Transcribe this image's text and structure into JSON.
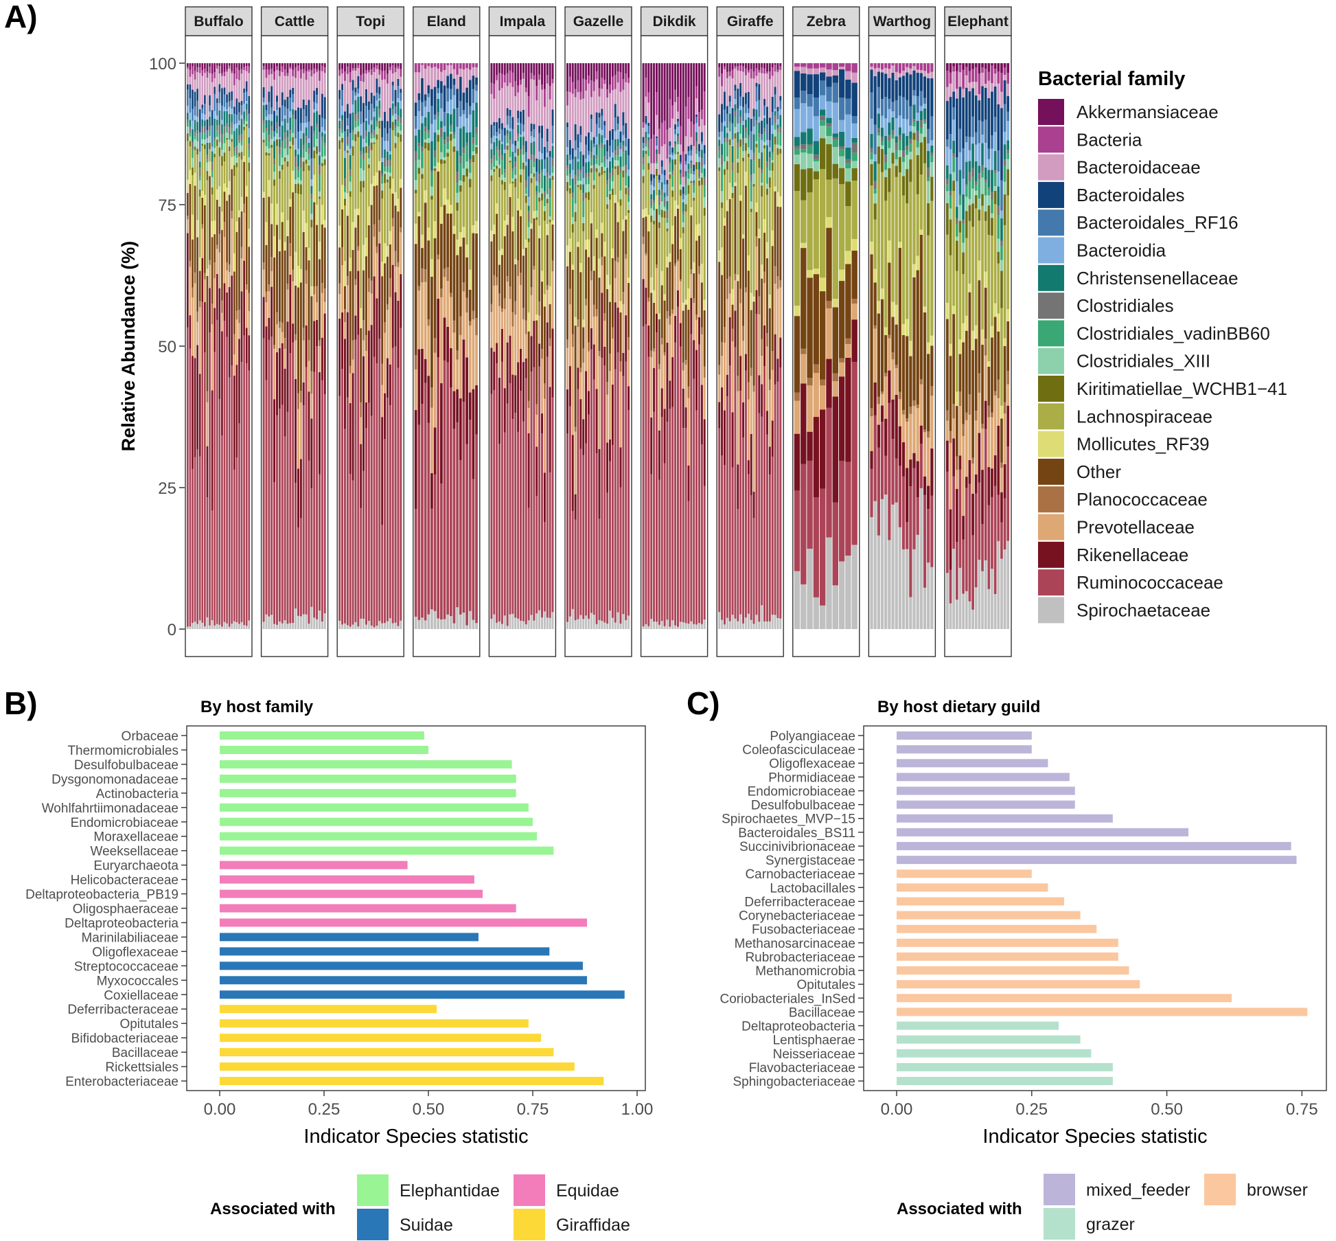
{
  "panel_labels": {
    "a": "A)",
    "b": "B)",
    "c": "C)"
  },
  "colors": {
    "Akkermansiaceae": "#75105a",
    "Bacteria": "#aa4090",
    "Bacteroidaceae": "#d19cc0",
    "Bacteroidales": "#12427a",
    "Bacteroidales_RF16": "#4479ad",
    "Bacteroidia": "#7eafe0",
    "Christensenellaceae": "#137a70",
    "Clostridiales": "#747474",
    "Clostridiales_vadinBB60": "#3aa874",
    "Clostridiales_XIII": "#8dd0ac",
    "Kiritimatiellae_WCHB1-41": "#6f6f12",
    "Lachnospiraceae": "#abad46",
    "Mollicutes_RF39": "#dedc74",
    "Other": "#744412",
    "Planococcaceae": "#aa7244",
    "Prevotellaceae": "#dea874",
    "Rikenellaceae": "#771221",
    "Ruminococcaceae": "#ab4457",
    "Spirochaetaceae": "#c0c0c0",
    "Elephantidae": "#99f494",
    "Suidae": "#2a77b7",
    "Equidae": "#f27dba",
    "Giraffidae": "#fcd937",
    "mixed_feeder": "#bcb5d9",
    "grazer": "#b4e1cc",
    "browser": "#fbc79e"
  },
  "chart_data": [
    {
      "type": "stacked-bar",
      "title": "",
      "ylabel": "Relative Abundance (%)",
      "xlabel": "",
      "ylim": [
        0,
        100
      ],
      "yticks": [
        0,
        25,
        50,
        75,
        100
      ],
      "legend_title": "Bacterial family",
      "families": [
        "Akkermansiaceae",
        "Bacteria",
        "Bacteroidaceae",
        "Bacteroidales",
        "Bacteroidales_RF16",
        "Bacteroidia",
        "Christensenellaceae",
        "Clostridiales",
        "Clostridiales_vadinBB60",
        "Clostridiales_XIII",
        "Kiritimatiellae_WCHB1−41",
        "Lachnospiraceae",
        "Mollicutes_RF39",
        "Other",
        "Planococcaceae",
        "Prevotellaceae",
        "Rikenellaceae",
        "Ruminococcaceae",
        "Spirochaetaceae"
      ],
      "stack_order": [
        "Spirochaetaceae",
        "Ruminococcaceae",
        "Rikenellaceae",
        "Prevotellaceae",
        "Planococcaceae",
        "Other",
        "Mollicutes_RF39",
        "Lachnospiraceae",
        "Kiritimatiellae_WCHB1-41",
        "Clostridiales_XIII",
        "Clostridiales_vadinBB60",
        "Clostridiales",
        "Christensenellaceae",
        "Bacteroidia",
        "Bacteroidales_RF16",
        "Bacteroidales",
        "Bacteroidaceae",
        "Bacteria",
        "Akkermansiaceae"
      ],
      "facets": [
        {
          "name": "Buffalo",
          "n": 26,
          "mean": {
            "Spirochaetaceae": 1,
            "Ruminococcaceae": 42,
            "Rikenellaceae": 12,
            "Prevotellaceae": 7,
            "Planococcaceae": 2,
            "Other": 11,
            "Mollicutes_RF39": 2,
            "Lachnospiraceae": 7,
            "Kiritimatiellae_WCHB1-41": 1,
            "Clostridiales_XIII": 1,
            "Clostridiales_vadinBB60": 1,
            "Clostridiales": 1,
            "Christensenellaceae": 2,
            "Bacteroidia": 1,
            "Bacteroidales_RF16": 2,
            "Bacteroidales": 2,
            "Bacteroidaceae": 4,
            "Bacteria": 1,
            "Akkermansiaceae": 1
          }
        },
        {
          "name": "Cattle",
          "n": 24,
          "mean": {
            "Spirochaetaceae": 2,
            "Ruminococcaceae": 38,
            "Rikenellaceae": 10,
            "Prevotellaceae": 6,
            "Planococcaceae": 2,
            "Other": 12,
            "Mollicutes_RF39": 3,
            "Lachnospiraceae": 8,
            "Kiritimatiellae_WCHB1-41": 1,
            "Clostridiales_XIII": 1,
            "Clostridiales_vadinBB60": 2,
            "Clostridiales": 1,
            "Christensenellaceae": 2,
            "Bacteroidia": 1,
            "Bacteroidales_RF16": 2,
            "Bacteroidales": 3,
            "Bacteroidaceae": 4,
            "Bacteria": 1,
            "Akkermansiaceae": 1
          }
        },
        {
          "name": "Topi",
          "n": 24,
          "mean": {
            "Spirochaetaceae": 1,
            "Ruminococcaceae": 40,
            "Rikenellaceae": 12,
            "Prevotellaceae": 6,
            "Planococcaceae": 2,
            "Other": 10,
            "Mollicutes_RF39": 3,
            "Lachnospiraceae": 10,
            "Kiritimatiellae_WCHB1-41": 1,
            "Clostridiales_XIII": 1,
            "Clostridiales_vadinBB60": 1,
            "Clostridiales": 1,
            "Christensenellaceae": 2,
            "Bacteroidia": 1,
            "Bacteroidales_RF16": 2,
            "Bacteroidales": 2,
            "Bacteroidaceae": 4,
            "Bacteria": 1,
            "Akkermansiaceae": 1
          }
        },
        {
          "name": "Eland",
          "n": 20,
          "mean": {
            "Spirochaetaceae": 2,
            "Ruminococcaceae": 36,
            "Rikenellaceae": 10,
            "Prevotellaceae": 9,
            "Planococcaceae": 2,
            "Other": 11,
            "Mollicutes_RF39": 2,
            "Lachnospiraceae": 9,
            "Kiritimatiellae_WCHB1-41": 1,
            "Clostridiales_XIII": 1,
            "Clostridiales_vadinBB60": 2,
            "Clostridiales": 1,
            "Christensenellaceae": 3,
            "Bacteroidia": 2,
            "Bacteroidales_RF16": 2,
            "Bacteroidales": 3,
            "Bacteroidaceae": 3,
            "Bacteria": 1,
            "Akkermansiaceae": 0
          }
        },
        {
          "name": "Impala",
          "n": 24,
          "mean": {
            "Spirochaetaceae": 2,
            "Ruminococcaceae": 34,
            "Rikenellaceae": 9,
            "Prevotellaceae": 9,
            "Planococcaceae": 2,
            "Other": 11,
            "Mollicutes_RF39": 2,
            "Lachnospiraceae": 10,
            "Kiritimatiellae_WCHB1-41": 1,
            "Clostridiales_XIII": 1,
            "Clostridiales_vadinBB60": 2,
            "Clostridiales": 1,
            "Christensenellaceae": 2,
            "Bacteroidia": 1,
            "Bacteroidales_RF16": 2,
            "Bacteroidales": 2,
            "Bacteroidaceae": 6,
            "Bacteria": 2,
            "Akkermansiaceae": 3
          }
        },
        {
          "name": "Gazelle",
          "n": 24,
          "mean": {
            "Spirochaetaceae": 2,
            "Ruminococcaceae": 34,
            "Rikenellaceae": 9,
            "Prevotellaceae": 9,
            "Planococcaceae": 2,
            "Other": 10,
            "Mollicutes_RF39": 2,
            "Lachnospiraceae": 11,
            "Kiritimatiellae_WCHB1-41": 1,
            "Clostridiales_XIII": 1,
            "Clostridiales_vadinBB60": 2,
            "Clostridiales": 1,
            "Christensenellaceae": 2,
            "Bacteroidia": 1,
            "Bacteroidales_RF16": 2,
            "Bacteroidales": 2,
            "Bacteroidaceae": 6,
            "Bacteria": 2,
            "Akkermansiaceae": 3
          }
        },
        {
          "name": "Dikdik",
          "n": 24,
          "mean": {
            "Spirochaetaceae": 1,
            "Ruminococcaceae": 42,
            "Rikenellaceae": 7,
            "Prevotellaceae": 7,
            "Planococcaceae": 1,
            "Other": 8,
            "Mollicutes_RF39": 2,
            "Lachnospiraceae": 9,
            "Kiritimatiellae_WCHB1-41": 1,
            "Clostridiales_XIII": 1,
            "Clostridiales_vadinBB60": 1,
            "Clostridiales": 1,
            "Christensenellaceae": 1,
            "Bacteroidia": 1,
            "Bacteroidales_RF16": 1,
            "Bacteroidales": 1,
            "Bacteroidaceae": 3,
            "Bacteria": 3,
            "Akkermansiaceae": 9
          }
        },
        {
          "name": "Giraffe",
          "n": 24,
          "mean": {
            "Spirochaetaceae": 2,
            "Ruminococcaceae": 38,
            "Rikenellaceae": 6,
            "Prevotellaceae": 9,
            "Planococcaceae": 2,
            "Other": 12,
            "Mollicutes_RF39": 2,
            "Lachnospiraceae": 11,
            "Kiritimatiellae_WCHB1-41": 1,
            "Clostridiales_XIII": 1,
            "Clostridiales_vadinBB60": 2,
            "Clostridiales": 1,
            "Christensenellaceae": 2,
            "Bacteroidia": 1,
            "Bacteroidales_RF16": 2,
            "Bacteroidales": 2,
            "Bacteroidaceae": 4,
            "Bacteria": 1,
            "Akkermansiaceae": 1
          }
        },
        {
          "name": "Zebra",
          "n": 10,
          "mean": {
            "Spirochaetaceae": 11,
            "Ruminococcaceae": 18,
            "Rikenellaceae": 13,
            "Prevotellaceae": 6,
            "Planococcaceae": 1,
            "Other": 14,
            "Mollicutes_RF39": 2,
            "Lachnospiraceae": 14,
            "Kiritimatiellae_WCHB1-41": 4,
            "Clostridiales_XIII": 2,
            "Clostridiales_vadinBB60": 1,
            "Clostridiales": 1,
            "Christensenellaceae": 2,
            "Bacteroidia": 4,
            "Bacteroidales_RF16": 3,
            "Bacteroidales": 4,
            "Bacteroidaceae": 1,
            "Bacteria": 1,
            "Akkermansiaceae": 0
          }
        },
        {
          "name": "Warthog",
          "n": 18,
          "mean": {
            "Spirochaetaceae": 16,
            "Ruminococcaceae": 13,
            "Rikenellaceae": 6,
            "Prevotellaceae": 6,
            "Planococcaceae": 1,
            "Other": 16,
            "Mollicutes_RF39": 2,
            "Lachnospiraceae": 19,
            "Kiritimatiellae_WCHB1-41": 4,
            "Clostridiales_XIII": 2,
            "Clostridiales_vadinBB60": 1,
            "Clostridiales": 1,
            "Christensenellaceae": 2,
            "Bacteroidia": 2,
            "Bacteroidales_RF16": 3,
            "Bacteroidales": 4,
            "Bacteroidaceae": 1,
            "Bacteria": 1,
            "Akkermansiaceae": 0
          }
        },
        {
          "name": "Elephant",
          "n": 20,
          "mean": {
            "Spirochaetaceae": 9,
            "Ruminococcaceae": 15,
            "Rikenellaceae": 7,
            "Prevotellaceae": 8,
            "Planococcaceae": 2,
            "Other": 12,
            "Mollicutes_RF39": 2,
            "Lachnospiraceae": 15,
            "Kiritimatiellae_WCHB1-41": 4,
            "Clostridiales_XIII": 2,
            "Clostridiales_vadinBB60": 2,
            "Clostridiales": 1,
            "Christensenellaceae": 3,
            "Bacteroidia": 3,
            "Bacteroidales_RF16": 3,
            "Bacteroidales": 7,
            "Bacteroidaceae": 2,
            "Bacteria": 2,
            "Akkermansiaceae": 1
          }
        }
      ]
    },
    {
      "type": "bar",
      "orientation": "horizontal",
      "title": "By host family",
      "xlabel": "Indicator Species statistic",
      "xlim": [
        0,
        1.0
      ],
      "xticks": [
        "0.00",
        "0.25",
        "0.50",
        "0.75",
        "1.00"
      ],
      "legend_title": "Associated with",
      "legend": [
        "Elephantidae",
        "Equidae",
        "Suidae",
        "Giraffidae"
      ],
      "bars": [
        {
          "label": "Orbaceae",
          "value": 0.49,
          "group": "Elephantidae"
        },
        {
          "label": "Thermomicrobiales",
          "value": 0.5,
          "group": "Elephantidae"
        },
        {
          "label": "Desulfobulbaceae",
          "value": 0.7,
          "group": "Elephantidae"
        },
        {
          "label": "Dysgonomonadaceae",
          "value": 0.71,
          "group": "Elephantidae"
        },
        {
          "label": "Actinobacteria",
          "value": 0.71,
          "group": "Elephantidae"
        },
        {
          "label": "Wohlfahrtiimonadaceae",
          "value": 0.74,
          "group": "Elephantidae"
        },
        {
          "label": "Endomicrobiaceae",
          "value": 0.75,
          "group": "Elephantidae"
        },
        {
          "label": "Moraxellaceae",
          "value": 0.76,
          "group": "Elephantidae"
        },
        {
          "label": "Weeksellaceae",
          "value": 0.8,
          "group": "Elephantidae"
        },
        {
          "label": "Euryarchaeota",
          "value": 0.45,
          "group": "Equidae"
        },
        {
          "label": "Helicobacteraceae",
          "value": 0.61,
          "group": "Equidae"
        },
        {
          "label": "Deltaproteobacteria_PB19",
          "value": 0.63,
          "group": "Equidae"
        },
        {
          "label": "Oligosphaeraceae",
          "value": 0.71,
          "group": "Equidae"
        },
        {
          "label": "Deltaproteobacteria",
          "value": 0.88,
          "group": "Equidae"
        },
        {
          "label": "Marinilabiliaceae",
          "value": 0.62,
          "group": "Suidae"
        },
        {
          "label": "Oligoflexaceae",
          "value": 0.79,
          "group": "Suidae"
        },
        {
          "label": "Streptococcaceae",
          "value": 0.87,
          "group": "Suidae"
        },
        {
          "label": "Myxococcales",
          "value": 0.88,
          "group": "Suidae"
        },
        {
          "label": "Coxiellaceae",
          "value": 0.97,
          "group": "Suidae"
        },
        {
          "label": "Deferribacteraceae",
          "value": 0.52,
          "group": "Giraffidae"
        },
        {
          "label": "Opitutales",
          "value": 0.74,
          "group": "Giraffidae"
        },
        {
          "label": "Bifidobacteriaceae",
          "value": 0.77,
          "group": "Giraffidae"
        },
        {
          "label": "Bacillaceae",
          "value": 0.8,
          "group": "Giraffidae"
        },
        {
          "label": "Rickettsiales",
          "value": 0.85,
          "group": "Giraffidae"
        },
        {
          "label": "Enterobacteriaceae",
          "value": 0.92,
          "group": "Giraffidae"
        }
      ]
    },
    {
      "type": "bar",
      "orientation": "horizontal",
      "title": "By host dietary guild",
      "xlabel": "Indicator Species statistic",
      "xlim": [
        0,
        0.78
      ],
      "xticks": [
        "0.00",
        "0.25",
        "0.50",
        "0.75"
      ],
      "legend_title": "Associated with",
      "legend": [
        "mixed_feeder",
        "browser",
        "grazer"
      ],
      "bars": [
        {
          "label": "Polyangiaceae",
          "value": 0.25,
          "group": "mixed_feeder"
        },
        {
          "label": "Coleofasciculaceae",
          "value": 0.25,
          "group": "mixed_feeder"
        },
        {
          "label": "Oligoflexaceae",
          "value": 0.28,
          "group": "mixed_feeder"
        },
        {
          "label": "Phormidiaceae",
          "value": 0.32,
          "group": "mixed_feeder"
        },
        {
          "label": "Endomicrobiaceae",
          "value": 0.33,
          "group": "mixed_feeder"
        },
        {
          "label": "Desulfobulbaceae",
          "value": 0.33,
          "group": "mixed_feeder"
        },
        {
          "label": "Spirochaetes_MVP−15",
          "value": 0.4,
          "group": "mixed_feeder"
        },
        {
          "label": "Bacteroidales_BS11",
          "value": 0.54,
          "group": "mixed_feeder"
        },
        {
          "label": "Succinivibrionaceae",
          "value": 0.73,
          "group": "mixed_feeder"
        },
        {
          "label": "Synergistaceae",
          "value": 0.74,
          "group": "mixed_feeder"
        },
        {
          "label": "Carnobacteriaceae",
          "value": 0.25,
          "group": "browser"
        },
        {
          "label": "Lactobacillales",
          "value": 0.28,
          "group": "browser"
        },
        {
          "label": "Deferribacteraceae",
          "value": 0.31,
          "group": "browser"
        },
        {
          "label": "Corynebacteriaceae",
          "value": 0.34,
          "group": "browser"
        },
        {
          "label": "Fusobacteriaceae",
          "value": 0.37,
          "group": "browser"
        },
        {
          "label": "Methanosarcinaceae",
          "value": 0.41,
          "group": "browser"
        },
        {
          "label": "Rubrobacteriaceae",
          "value": 0.41,
          "group": "browser"
        },
        {
          "label": "Methanomicrobia",
          "value": 0.43,
          "group": "browser"
        },
        {
          "label": "Opitutales",
          "value": 0.45,
          "group": "browser"
        },
        {
          "label": "Coriobacteriales_InSed",
          "value": 0.62,
          "group": "browser"
        },
        {
          "label": "Bacillaceae",
          "value": 0.76,
          "group": "browser"
        },
        {
          "label": "Deltaproteobacteria",
          "value": 0.3,
          "group": "grazer"
        },
        {
          "label": "Lentisphaerae",
          "value": 0.34,
          "group": "grazer"
        },
        {
          "label": "Neisseriaceae",
          "value": 0.36,
          "group": "grazer"
        },
        {
          "label": "Flavobacteriaceae",
          "value": 0.4,
          "group": "grazer"
        },
        {
          "label": "Sphingobacteriaceae",
          "value": 0.4,
          "group": "grazer"
        }
      ]
    }
  ]
}
